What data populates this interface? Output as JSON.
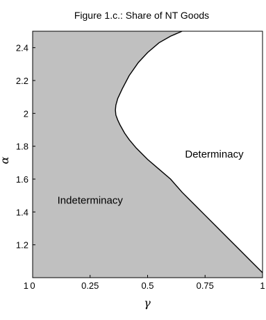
{
  "chart_data": {
    "type": "area",
    "title": "Figure 1.c.: Share of NT Goods",
    "xlabel": "γ",
    "ylabel": "α",
    "xlim": [
      0,
      1
    ],
    "ylim": [
      1,
      2.5
    ],
    "x_ticks": [
      {
        "value": 0,
        "label": "0"
      },
      {
        "value": 0.25,
        "label": "0.25"
      },
      {
        "value": 0.5,
        "label": "0.5"
      },
      {
        "value": 0.75,
        "label": "0.75"
      },
      {
        "value": 1,
        "label": "1"
      }
    ],
    "y_ticks": [
      {
        "value": 1,
        "label": "1"
      },
      {
        "value": 1.2,
        "label": "1.2"
      },
      {
        "value": 1.4,
        "label": "1.4"
      },
      {
        "value": 1.6,
        "label": "1.6"
      },
      {
        "value": 1.8,
        "label": "1.8"
      },
      {
        "value": 2,
        "label": "2"
      },
      {
        "value": 2.2,
        "label": "2.2"
      },
      {
        "value": 2.4,
        "label": "2.4"
      }
    ],
    "boundary": {
      "x": [
        1.0,
        0.95,
        0.9,
        0.85,
        0.8,
        0.75,
        0.7,
        0.65,
        0.6,
        0.55,
        0.5,
        0.45,
        0.42,
        0.4,
        0.38,
        0.37,
        0.362,
        0.36,
        0.362,
        0.37,
        0.39,
        0.42,
        0.46,
        0.5,
        0.55,
        0.6,
        0.65
      ],
      "y": [
        1.03,
        1.1,
        1.17,
        1.24,
        1.31,
        1.38,
        1.45,
        1.52,
        1.6,
        1.66,
        1.72,
        1.79,
        1.84,
        1.88,
        1.93,
        1.96,
        1.99,
        2.02,
        2.05,
        2.09,
        2.15,
        2.23,
        2.31,
        2.37,
        2.43,
        2.47,
        2.5
      ]
    },
    "regions": [
      {
        "label": "Indeterminacy",
        "x": 0.25,
        "y": 1.45
      },
      {
        "label": "Determinacy",
        "x": 0.79,
        "y": 1.73
      }
    ],
    "colors": {
      "indeterminacy_fill": "#c0c0c0",
      "determinacy_fill": "#ffffff",
      "boundary": "#000000"
    },
    "grid": false
  }
}
